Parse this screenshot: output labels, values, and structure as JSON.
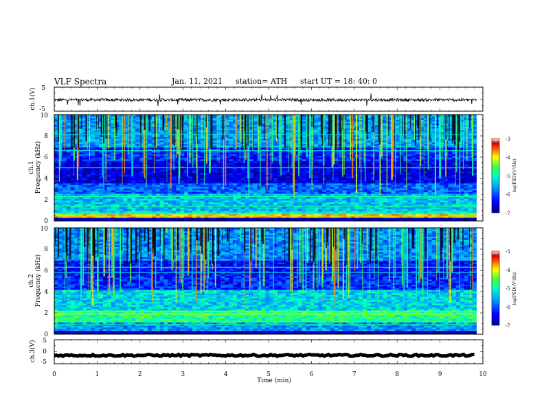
{
  "header": {
    "title": "VLF Spectra",
    "date": "Jan. 11, 2021",
    "station": "station= ATH",
    "start": "start  UT  =   18: 40: 0"
  },
  "chart_data": [
    {
      "type": "line",
      "panel": "ch1-waveform",
      "ylabel": "ch.1(V)",
      "yticks": [
        "5",
        "-5"
      ],
      "ylim": [
        -5,
        5
      ],
      "xlim": [
        0,
        10
      ],
      "data_extent_min": [
        0,
        9.85
      ],
      "trace_level_v": -0.3,
      "trace_noise_v": 0.6,
      "trace_color": "#000000"
    },
    {
      "type": "heatmap",
      "panel": "ch1-spectrogram",
      "ylabel_line1": "ch.1",
      "ylabel_line2": "Frequency  (kHz)",
      "yticks": [
        "0",
        "2",
        "4",
        "6",
        "8",
        "10"
      ],
      "ylim_khz": [
        0,
        10
      ],
      "xlim_min": [
        0,
        10
      ],
      "colorbar": {
        "label": "log(PSD)(V²/Hz)",
        "ticks": [
          "-3",
          "-4",
          "-5",
          "-6",
          "-7"
        ],
        "range": [
          -7,
          -3
        ]
      },
      "background_levels": [
        {
          "khz": [
            0.0,
            0.3
          ],
          "log_psd": -6.8
        },
        {
          "khz": [
            0.3,
            0.6
          ],
          "log_psd": -4.0
        },
        {
          "khz": [
            0.6,
            1.0
          ],
          "log_psd": -5.2
        },
        {
          "khz": [
            1.0,
            2.6
          ],
          "log_psd": -5.4
        },
        {
          "khz": [
            2.6,
            3.6
          ],
          "log_psd": -5.9
        },
        {
          "khz": [
            3.6,
            5.6
          ],
          "log_psd": -6.6
        },
        {
          "khz": [
            5.6,
            7.0
          ],
          "log_psd": -6.2
        },
        {
          "khz": [
            7.0,
            10.0
          ],
          "log_psd": -5.6
        }
      ]
    },
    {
      "type": "heatmap",
      "panel": "ch2-spectrogram",
      "ylabel_line1": "ch.2",
      "ylabel_line2": "Frequency  (kHz)",
      "yticks": [
        "0",
        "2",
        "4",
        "6",
        "8",
        "10"
      ],
      "ylim_khz": [
        0,
        10
      ],
      "xlim_min": [
        0,
        10
      ],
      "colorbar": {
        "label": "log(PSD)(V²/Hz)",
        "ticks": [
          "-3",
          "-4",
          "-5",
          "-6",
          "-7"
        ],
        "range": [
          -7,
          -3
        ]
      },
      "background_levels": [
        {
          "khz": [
            0.0,
            0.3
          ],
          "log_psd": -6.8
        },
        {
          "khz": [
            0.3,
            1.2
          ],
          "log_psd": -5.6
        },
        {
          "khz": [
            1.2,
            2.2
          ],
          "log_psd": -4.8
        },
        {
          "khz": [
            2.2,
            4.2
          ],
          "log_psd": -5.3
        },
        {
          "khz": [
            4.2,
            5.5
          ],
          "log_psd": -6.2
        },
        {
          "khz": [
            5.5,
            7.0
          ],
          "log_psd": -6.4
        },
        {
          "khz": [
            7.0,
            10.0
          ],
          "log_psd": -5.7
        }
      ]
    },
    {
      "type": "line",
      "panel": "ch3-waveform",
      "ylabel": "ch.3(V)",
      "yticks": [
        "5",
        "0",
        "-5"
      ],
      "ylim": [
        -5,
        5
      ],
      "xlim": [
        0,
        10
      ],
      "data_extent_min": [
        0,
        9.85
      ],
      "trace_level_v": -1.5,
      "trace_noise_v": 0.4,
      "trace_color": "#000000"
    }
  ],
  "xaxis": {
    "label": "Time  (min)",
    "ticks": [
      "0",
      "1",
      "2",
      "3",
      "4",
      "5",
      "6",
      "7",
      "8",
      "9",
      "10"
    ],
    "xlim": [
      0,
      10
    ]
  }
}
